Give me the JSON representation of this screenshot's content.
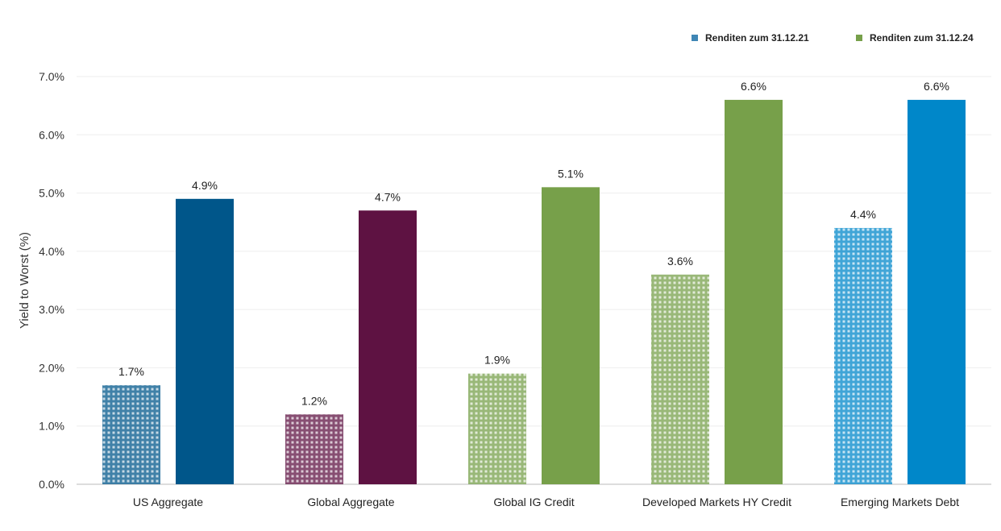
{
  "chart_data": {
    "type": "bar",
    "categories": [
      "US Aggregate",
      "Global Aggregate",
      "Global IG Credit",
      "Developed Markets HY Credit",
      "Emerging Markets Debt"
    ],
    "series": [
      {
        "name": "Renditen zum 31.12.21",
        "values": [
          1.7,
          1.2,
          1.9,
          3.6,
          4.4
        ],
        "labels": [
          "1.7%",
          "1.2%",
          "1.9%",
          "3.6%",
          "4.4%"
        ],
        "pattern": "dotted"
      },
      {
        "name": "Renditen zum 31.12.24",
        "values": [
          4.9,
          4.7,
          5.1,
          6.6,
          6.6
        ],
        "labels": [
          "4.9%",
          "4.7%",
          "5.1%",
          "6.6%",
          "6.6%"
        ],
        "pattern": "solid"
      }
    ],
    "category_colors": [
      "#00568a",
      "#5e1242",
      "#77a04a",
      "#77a04a",
      "#0087c9"
    ],
    "legend_colors": [
      "#3f86b5",
      "#77a04a"
    ],
    "ylabel": "Yield to Worst (%)",
    "xlabel": "",
    "ylim": [
      0,
      7
    ],
    "yticks": [
      "0.0%",
      "1.0%",
      "2.0%",
      "3.0%",
      "4.0%",
      "5.0%",
      "6.0%",
      "7.0%"
    ],
    "grid": true,
    "legend_position": "top-right"
  }
}
